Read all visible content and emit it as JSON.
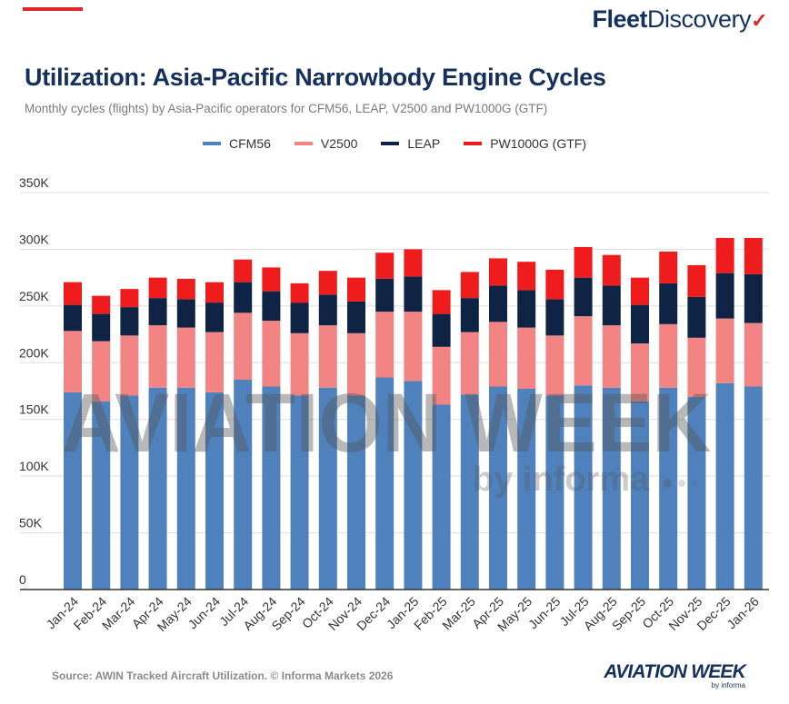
{
  "brand": {
    "logo_part1": "Fleet",
    "logo_part2": "Discovery",
    "logo_mark": "✓"
  },
  "title": "Utilization: Asia-Pacific Narrowbody Engine Cycles",
  "subtitle": "Monthly cycles (flights) by Asia-Pacific operators for CFM56, LEAP, V2500 and PW1000G (GTF)",
  "source": "Source: AWIN Tracked Aircraft Utilization. © Informa Markets 2026",
  "footer_logo": {
    "main": "AVIATION WEEK",
    "sub": "by informa"
  },
  "watermark": {
    "main": "AVIATION WEEK",
    "sub": "by informa"
  },
  "colors": {
    "CFM56": "#4f81bd",
    "V2500": "#f28484",
    "LEAP": "#0f2345",
    "PW1000G (GTF)": "#ee1c1c"
  },
  "chart_data": {
    "type": "bar",
    "stacked": true,
    "title": "Utilization: Asia-Pacific Narrowbody Engine Cycles",
    "xlabel": "",
    "ylabel": "",
    "ylim": [
      0,
      350000
    ],
    "yticks": [
      0,
      50000,
      100000,
      150000,
      200000,
      250000,
      300000,
      350000
    ],
    "ytick_labels": [
      "0",
      "50K",
      "100K",
      "150K",
      "200K",
      "250K",
      "300K",
      "350K"
    ],
    "grid": true,
    "legend_position": "top-center",
    "categories": [
      "Jan-24",
      "Feb-24",
      "Mar-24",
      "Apr-24",
      "May-24",
      "Jun-24",
      "Jul-24",
      "Aug-24",
      "Sep-24",
      "Oct-24",
      "Nov-24",
      "Dec-24",
      "Jan-25",
      "Feb-25",
      "Mar-25",
      "Apr-25",
      "May-25",
      "Jun-25",
      "Jul-25",
      "Aug-25",
      "Sep-25",
      "Oct-25",
      "Nov-25",
      "Dec-25",
      "Jan-26"
    ],
    "series": [
      {
        "name": "CFM56",
        "values": [
          174000,
          166000,
          171000,
          178000,
          178000,
          174000,
          185000,
          179000,
          171000,
          178000,
          171000,
          187000,
          184000,
          163000,
          172000,
          179000,
          177000,
          171000,
          180000,
          178000,
          166000,
          178000,
          170000,
          182000,
          179000
        ]
      },
      {
        "name": "V2500",
        "values": [
          54000,
          53000,
          53000,
          55000,
          53000,
          53000,
          59000,
          58000,
          55000,
          55000,
          55000,
          58000,
          61000,
          51000,
          55000,
          57000,
          54000,
          53000,
          61000,
          55000,
          51000,
          56000,
          52000,
          57000,
          56000
        ]
      },
      {
        "name": "LEAP",
        "values": [
          23000,
          24000,
          25000,
          24000,
          25000,
          26000,
          27000,
          26000,
          27000,
          27000,
          28000,
          29000,
          31000,
          29000,
          30000,
          32000,
          33000,
          32000,
          34000,
          35000,
          34000,
          36000,
          36000,
          40000,
          43000
        ]
      },
      {
        "name": "PW1000G (GTF)",
        "values": [
          20000,
          16000,
          16000,
          18000,
          18000,
          18000,
          20000,
          21000,
          17000,
          21000,
          21000,
          23000,
          24000,
          21000,
          23000,
          24000,
          25000,
          26000,
          27000,
          27000,
          24000,
          28000,
          28000,
          31000,
          32000
        ]
      }
    ]
  }
}
